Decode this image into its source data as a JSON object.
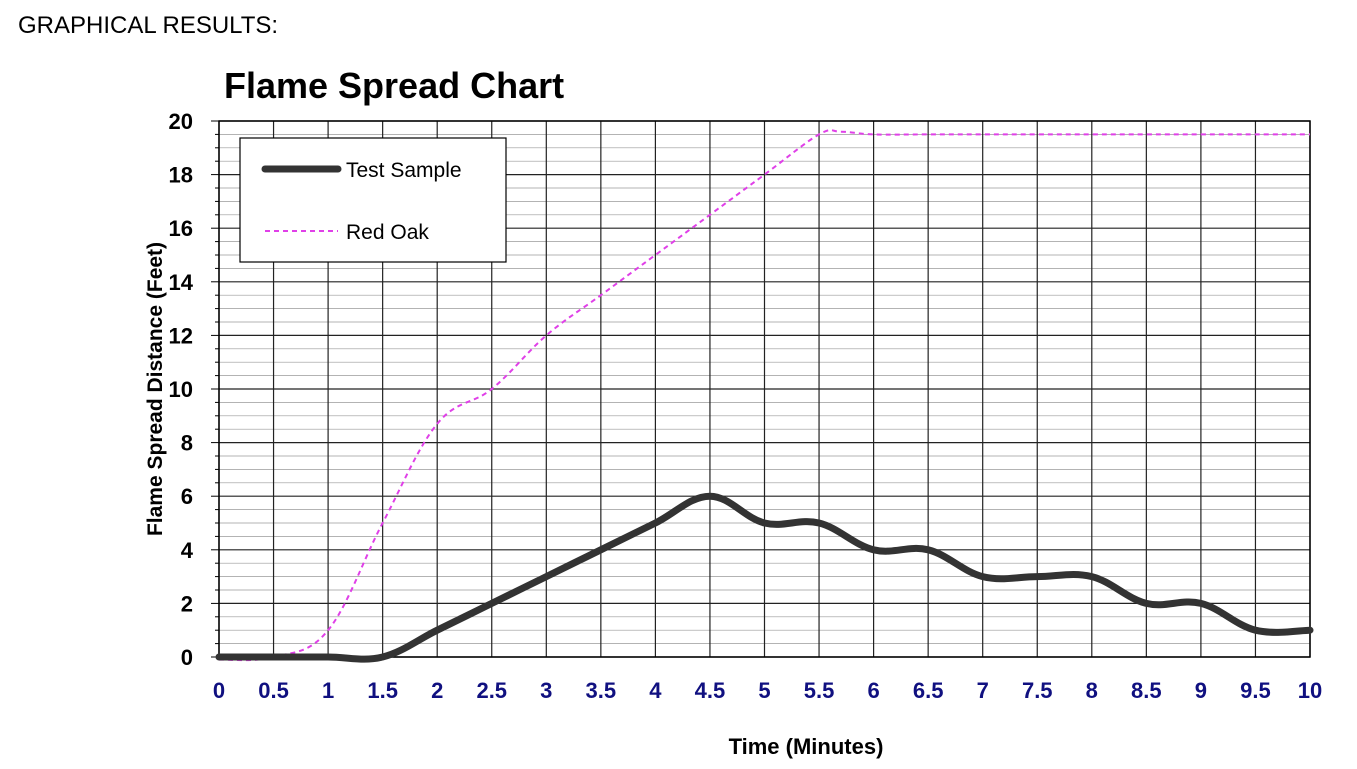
{
  "header": {
    "text": "GRAPHICAL RESULTS:"
  },
  "chart_data": {
    "type": "line",
    "title": "Flame Spread Chart",
    "xlabel": "Time (Minutes)",
    "ylabel": "Flame Spread Distance (Feet)",
    "xlim": [
      0,
      10
    ],
    "ylim": [
      0,
      20
    ],
    "x_ticks": [
      "0",
      "0.5",
      "1",
      "1.5",
      "2",
      "2.5",
      "3",
      "3.5",
      "4",
      "4.5",
      "5",
      "5.5",
      "6",
      "6.5",
      "7",
      "7.5",
      "8",
      "8.5",
      "9",
      "9.5",
      "10"
    ],
    "y_ticks": [
      "0",
      "2",
      "4",
      "6",
      "8",
      "10",
      "12",
      "14",
      "16",
      "18",
      "20"
    ],
    "grid": true,
    "legend_position": "top-left",
    "x_tick_color": "#101080",
    "series": [
      {
        "name": "Test Sample",
        "color": "#333333",
        "style": "solid",
        "x": [
          0,
          0.5,
          1,
          1.5,
          2,
          2.5,
          3,
          3.5,
          4,
          4.5,
          5,
          5.5,
          6,
          6.5,
          7,
          7.5,
          8,
          8.5,
          9,
          9.5,
          10
        ],
        "y": [
          0,
          0,
          0,
          0,
          1,
          2,
          3,
          4,
          5,
          6,
          5,
          5,
          4,
          4,
          3,
          3,
          3,
          2,
          2,
          1,
          1
        ]
      },
      {
        "name": "Red Oak",
        "color": "#e040e8",
        "style": "dashed",
        "x": [
          0,
          0.5,
          1,
          1.5,
          2,
          2.5,
          3,
          3.5,
          4,
          4.5,
          5,
          5.5,
          5.7,
          6,
          6.5,
          7,
          7.5,
          8,
          8.5,
          9,
          9.5,
          10
        ],
        "y": [
          -0.1,
          0,
          1,
          5,
          8.7,
          10,
          12,
          13.5,
          15,
          16.5,
          18,
          19.5,
          19.6,
          19.5,
          19.5,
          19.5,
          19.5,
          19.5,
          19.5,
          19.5,
          19.5,
          19.5
        ]
      }
    ]
  }
}
